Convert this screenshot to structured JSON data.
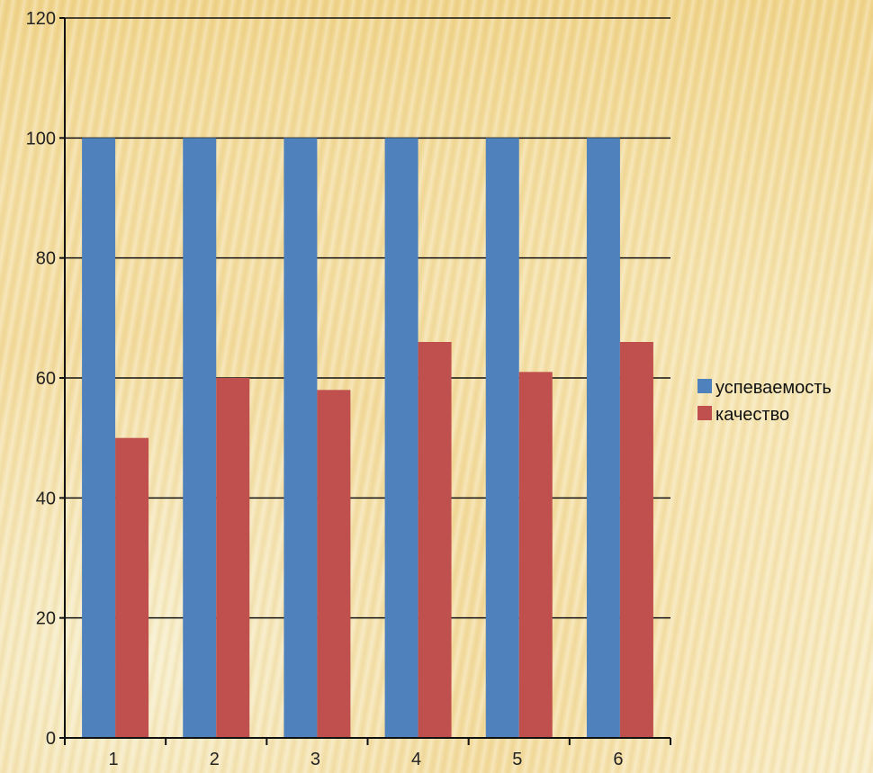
{
  "chart_data": {
    "type": "bar",
    "categories": [
      "1",
      "2",
      "3",
      "4",
      "5",
      "6"
    ],
    "series": [
      {
        "name": "успеваемость",
        "values": [
          100,
          100,
          100,
          100,
          100,
          100
        ],
        "color": "#4f81bd"
      },
      {
        "name": "качество",
        "values": [
          50,
          60,
          58,
          66,
          61,
          66
        ],
        "color": "#c0504d"
      }
    ],
    "ylim": [
      0,
      120
    ],
    "yticks": [
      "0",
      "20",
      "40",
      "60",
      "80",
      "100",
      "120"
    ],
    "grid": true,
    "legend_position": "right"
  }
}
